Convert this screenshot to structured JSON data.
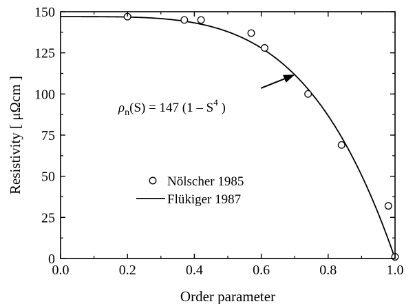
{
  "chart_data": {
    "type": "scatter",
    "title": "",
    "xlabel": "Order parameter",
    "ylabel": "Resistivity [ μΩcm ]",
    "xlim": [
      0.0,
      1.0
    ],
    "ylim": [
      0,
      150
    ],
    "xticks": [
      0.0,
      0.2,
      0.4,
      0.6,
      0.8,
      1.0
    ],
    "xtick_labels": [
      "0.0",
      "0.2",
      "0.4",
      "0.6",
      "0.8",
      "1.0"
    ],
    "yticks": [
      0,
      25,
      50,
      75,
      100,
      125,
      150
    ],
    "ytick_labels": [
      "0",
      "25",
      "50",
      "75",
      "100",
      "125",
      "150"
    ],
    "grid": false,
    "legend_position": "lower-left",
    "series": [
      {
        "name": "Nölscher 1985",
        "kind": "scatter",
        "marker": "open-circle",
        "x": [
          0.2,
          0.37,
          0.42,
          0.57,
          0.61,
          0.74,
          0.84,
          0.98,
          1.0
        ],
        "y": [
          147,
          145,
          145,
          137,
          128,
          100,
          69,
          32,
          1
        ]
      },
      {
        "name": "Flükiger 1987",
        "kind": "line",
        "formula": "147*(1 - S^4)",
        "amplitude": 147,
        "exponent": 4
      }
    ],
    "annotation": {
      "rho": "ρ",
      "sub": "n",
      "mid": "(S) = 147 (1 – S",
      "sup": "4",
      "end": " )",
      "arrow_target_x": 0.7
    }
  }
}
